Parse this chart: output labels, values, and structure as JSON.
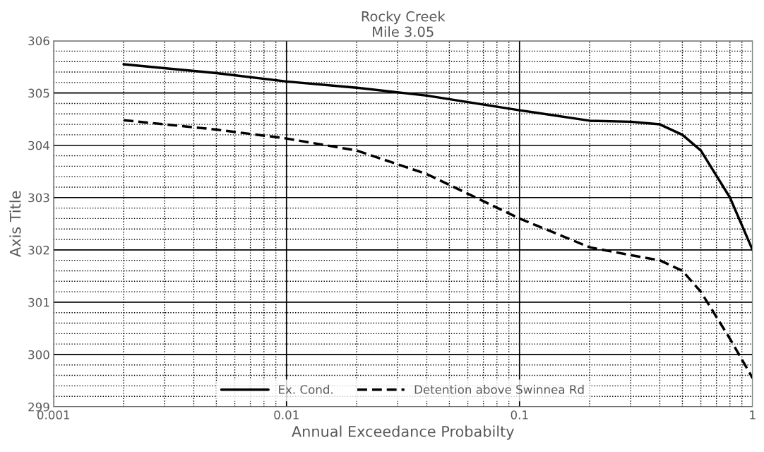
{
  "chart_data": {
    "type": "line",
    "title": "Rocky Creek",
    "subtitle": "Mile 3.05",
    "xlabel": "Annual Exceedance Probabilty",
    "ylabel": "Axis Title",
    "log": "x",
    "xlim": [
      0.001,
      1
    ],
    "xticks": [
      0.001,
      0.01,
      0.1,
      1
    ],
    "ylim": [
      299,
      306
    ],
    "yticks": [
      299,
      300,
      301,
      302,
      303,
      304,
      305,
      306
    ],
    "grid": true,
    "legend": "bottom",
    "marker": "none",
    "series": [
      {
        "name": "Ex. Cond.",
        "color": "#000000",
        "line_style": "solid",
        "x": [
          0.002,
          0.005,
          0.01,
          0.02,
          0.04,
          0.1,
          0.2,
          0.3,
          0.4,
          0.5,
          0.6,
          0.8,
          1
        ],
        "values": [
          305.55,
          305.38,
          305.22,
          305.1,
          304.95,
          304.67,
          304.47,
          304.45,
          304.4,
          304.2,
          303.9,
          303.0,
          302.0
        ]
      },
      {
        "name": "Detention above Swinnea Rd",
        "color": "#000000",
        "line_style": "dashed",
        "x": [
          0.002,
          0.005,
          0.01,
          0.02,
          0.04,
          0.1,
          0.2,
          0.3,
          0.4,
          0.5,
          0.6,
          0.8,
          1
        ],
        "values": [
          304.48,
          304.3,
          304.13,
          303.9,
          303.45,
          302.6,
          302.05,
          301.9,
          301.8,
          301.6,
          301.2,
          300.3,
          299.55
        ]
      }
    ]
  }
}
